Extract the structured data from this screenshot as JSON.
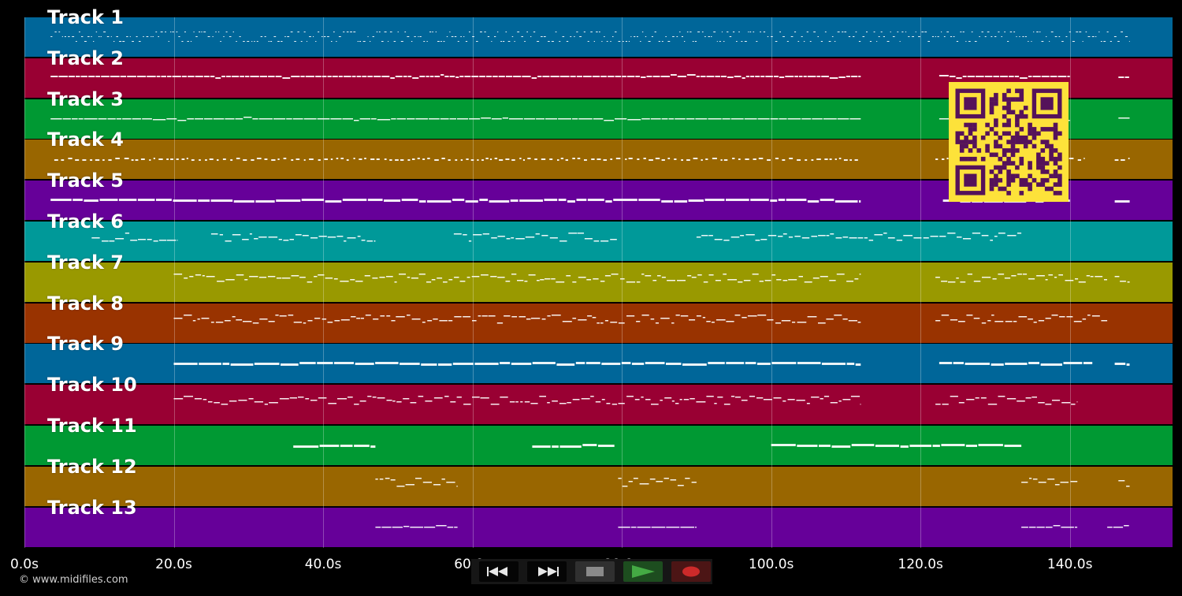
{
  "tracks": [
    {
      "label": "Track 1",
      "color": "#006699",
      "pattern": "dense",
      "segments": [
        [
          3.5,
          148
        ]
      ]
    },
    {
      "label": "Track 2",
      "color": "#990033",
      "pattern": "dash",
      "segments": [
        [
          3.5,
          112
        ],
        [
          122.5,
          140
        ],
        [
          146.5,
          148
        ]
      ]
    },
    {
      "label": "Track 3",
      "color": "#009933",
      "pattern": "line",
      "segments": [
        [
          3.5,
          112
        ],
        [
          122.5,
          140
        ],
        [
          146.5,
          148
        ]
      ]
    },
    {
      "label": "Track 4",
      "color": "#996600",
      "pattern": "dots",
      "segments": [
        [
          4,
          112
        ],
        [
          122,
          142
        ],
        [
          146,
          148
        ]
      ]
    },
    {
      "label": "Track 5",
      "color": "#660099",
      "pattern": "thick",
      "segments": [
        [
          3.5,
          112
        ],
        [
          123,
          140
        ],
        [
          146,
          148
        ]
      ]
    },
    {
      "label": "Track 6",
      "color": "#009999",
      "pattern": "melody",
      "segments": [
        [
          9,
          20.5
        ],
        [
          25,
          47
        ],
        [
          57.5,
          79.5
        ],
        [
          90,
          133.5
        ]
      ]
    },
    {
      "label": "Track 7",
      "color": "#999900",
      "pattern": "melody",
      "segments": [
        [
          20,
          112
        ],
        [
          122,
          145
        ],
        [
          146,
          148
        ]
      ]
    },
    {
      "label": "Track 8",
      "color": "#993300",
      "pattern": "melody",
      "segments": [
        [
          20,
          112
        ],
        [
          122,
          145
        ]
      ]
    },
    {
      "label": "Track 9",
      "color": "#006699",
      "pattern": "thick",
      "segments": [
        [
          20,
          112
        ],
        [
          122.5,
          143
        ],
        [
          146,
          148
        ]
      ]
    },
    {
      "label": "Track 10",
      "color": "#990033",
      "pattern": "melody",
      "segments": [
        [
          20,
          112
        ],
        [
          122,
          141
        ]
      ]
    },
    {
      "label": "Track 11",
      "color": "#009933",
      "pattern": "thick",
      "segments": [
        [
          36,
          47
        ],
        [
          68,
          79
        ],
        [
          100,
          133.5
        ]
      ]
    },
    {
      "label": "Track 12",
      "color": "#996600",
      "pattern": "melody",
      "segments": [
        [
          47,
          58
        ],
        [
          79.5,
          90
        ],
        [
          133.5,
          141
        ],
        [
          146.5,
          148
        ]
      ]
    },
    {
      "label": "Track 13",
      "color": "#660099",
      "pattern": "line",
      "segments": [
        [
          47,
          58
        ],
        [
          79.5,
          90
        ],
        [
          133.5,
          141
        ],
        [
          145,
          148
        ]
      ]
    }
  ],
  "timeline": {
    "max_seconds": 153.75,
    "ticks": [
      0,
      20,
      40,
      60,
      80,
      100,
      120,
      140
    ],
    "tick_labels": [
      "0.0s",
      "20.0s",
      "40.0s",
      "60.0s",
      "80.0s",
      "100.0s",
      "120.0s",
      "140.0s"
    ]
  },
  "qr": {
    "foreground": "#55125a",
    "background": "#fde23a"
  },
  "copyright": "© www.midifiles.com",
  "transport": {
    "rewind_icon": "rewind-icon",
    "fast_forward_icon": "fast-forward-icon",
    "stop_icon": "stop-icon",
    "play_icon": "play-icon",
    "record_icon": "record-icon",
    "play_color": "#44aa44",
    "record_color": "#cc2a2a",
    "stop_color": "#8a8a8a"
  }
}
